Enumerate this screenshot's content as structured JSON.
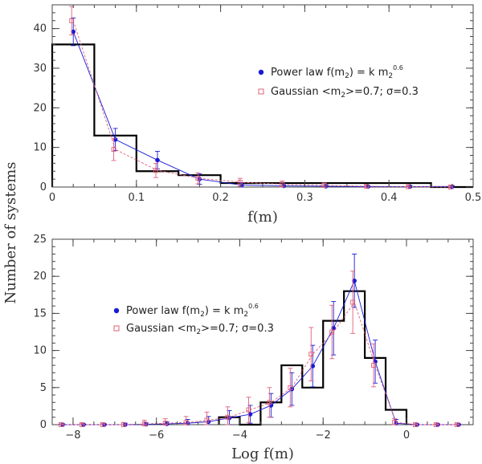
{
  "y_axis_label": "Number of systems",
  "colors": {
    "histogram": "#000000",
    "power_law": "#1a1ad6",
    "gaussian": "#e0607a",
    "axes": "#444444"
  },
  "chart_data": [
    {
      "type": "histogram",
      "xlabel": "f(m)",
      "xlim": [
        0,
        0.5
      ],
      "ylim": [
        0,
        46
      ],
      "xticks": [
        0,
        0.1,
        0.2,
        0.3,
        0.4,
        0.5
      ],
      "xtick_labels": [
        "0",
        "0.1",
        "0.2",
        "0.3",
        "0.4",
        "0.5"
      ],
      "yticks": [
        0,
        10,
        20,
        30,
        40
      ],
      "ytick_labels": [
        "0",
        "10",
        "20",
        "30",
        "40"
      ],
      "legend_position": "top-right",
      "histogram": {
        "edges": [
          0,
          0.05,
          0.1,
          0.15,
          0.2,
          0.25,
          0.3,
          0.35,
          0.4,
          0.45,
          0.5
        ],
        "counts": [
          36,
          13,
          4,
          3,
          1,
          1,
          1,
          1,
          1,
          0
        ]
      },
      "series": [
        {
          "name": "Power law",
          "legend_main": "Power law f(m",
          "legend_sub": "2",
          "legend_mid": ") = k m",
          "legend_sub2": "2",
          "legend_sup": "0.6",
          "x": [
            0.025,
            0.075,
            0.125,
            0.175,
            0.225,
            0.275,
            0.325,
            0.375,
            0.425,
            0.475
          ],
          "y": [
            39.2,
            12.0,
            6.8,
            2.0,
            0.5,
            0.3,
            0.2,
            0.1,
            0.1,
            0.1
          ],
          "err": [
            3.5,
            2.8,
            2.2,
            1.3,
            0.6,
            0.5,
            0.4,
            0.3,
            0.3,
            0.3
          ]
        },
        {
          "name": "Gaussian",
          "legend_main": "Gaussian <m",
          "legend_sub": "2",
          "legend_mid": ">=0.7; σ=0.3",
          "x": [
            0.025,
            0.075,
            0.125,
            0.175,
            0.225,
            0.275,
            0.325,
            0.375,
            0.425,
            0.475
          ],
          "y": [
            42.0,
            9.5,
            4.2,
            2.2,
            1.2,
            0.7,
            0.4,
            0.2,
            0.1,
            0.0
          ],
          "err": [
            3.6,
            2.8,
            1.8,
            1.4,
            1.0,
            0.8,
            0.6,
            0.4,
            0.3,
            0.2
          ]
        }
      ]
    },
    {
      "type": "histogram",
      "xlabel": "Log f(m)",
      "xlim": [
        -8.5,
        1.6
      ],
      "ylim": [
        0,
        25
      ],
      "xticks": [
        -8,
        -6,
        -4,
        -2,
        0
      ],
      "xtick_labels": [
        "−8",
        "−6",
        "−4",
        "−2",
        "0"
      ],
      "yticks": [
        0,
        5,
        10,
        15,
        20,
        25
      ],
      "ytick_labels": [
        "0",
        "5",
        "10",
        "15",
        "20",
        "25"
      ],
      "legend_position": "middle-left",
      "histogram": {
        "edges": [
          -4.5,
          -4.0,
          -3.5,
          -3.0,
          -2.5,
          -2.0,
          -1.5,
          -1.0,
          -0.5,
          0.0
        ],
        "counts": [
          1,
          0,
          3,
          8,
          5,
          14,
          18,
          9,
          2
        ]
      },
      "series": [
        {
          "name": "Power law",
          "legend_main": "Power law f(m",
          "legend_sub": "2",
          "legend_mid": ") = k m",
          "legend_sub2": "2",
          "legend_sup": "0.6",
          "x": [
            -8.25,
            -7.75,
            -7.25,
            -6.75,
            -6.25,
            -5.75,
            -5.25,
            -4.75,
            -4.25,
            -3.75,
            -3.25,
            -2.75,
            -2.25,
            -1.75,
            -1.25,
            -0.75,
            -0.25,
            0.25,
            0.75,
            1.25
          ],
          "y": [
            0.0,
            0.0,
            0.0,
            0.0,
            0.05,
            0.1,
            0.2,
            0.4,
            0.9,
            1.4,
            2.6,
            4.8,
            7.9,
            13.0,
            19.4,
            8.5,
            0.2,
            0.0,
            0.0,
            0.0
          ],
          "err": [
            0.1,
            0.1,
            0.1,
            0.2,
            0.2,
            0.3,
            0.5,
            0.7,
            1.0,
            1.2,
            1.6,
            2.2,
            2.8,
            3.6,
            3.6,
            2.9,
            0.5,
            0.1,
            0.1,
            0.1
          ]
        },
        {
          "name": "Gaussian",
          "legend_main": "Gaussian <m",
          "legend_sub": "2",
          "legend_mid": ">=0.7; σ=0.3",
          "x": [
            -8.25,
            -7.75,
            -7.25,
            -6.75,
            -6.25,
            -5.75,
            -5.25,
            -4.75,
            -4.25,
            -3.75,
            -3.25,
            -2.75,
            -2.25,
            -1.75,
            -1.25,
            -0.75,
            -0.25,
            0.25,
            0.75,
            1.25
          ],
          "y": [
            0.0,
            0.0,
            0.0,
            0.0,
            0.1,
            0.2,
            0.3,
            0.6,
            1.0,
            2.0,
            3.0,
            5.0,
            9.5,
            12.5,
            16.5,
            8.0,
            0.3,
            0.0,
            0.0,
            0.0
          ],
          "err": [
            0.1,
            0.2,
            0.2,
            0.3,
            0.5,
            0.6,
            0.8,
            1.1,
            1.4,
            1.7,
            2.0,
            2.6,
            3.6,
            3.6,
            4.2,
            2.9,
            0.5,
            0.1,
            0.1,
            0.1
          ]
        }
      ]
    }
  ]
}
